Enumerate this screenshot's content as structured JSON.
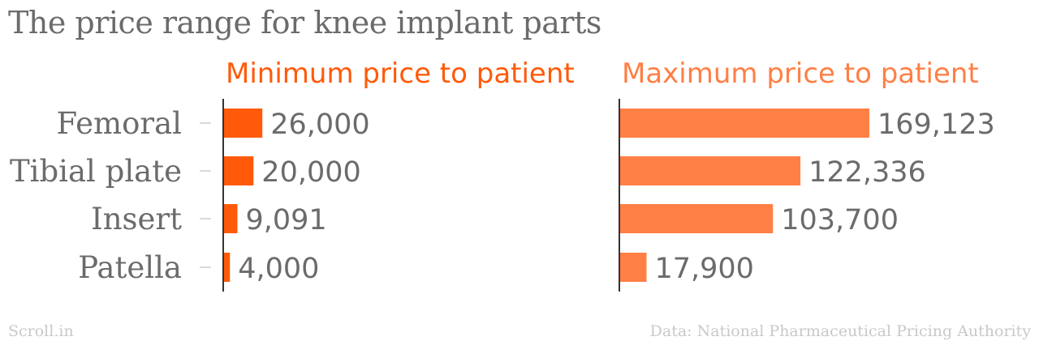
{
  "title": "The price range for knee implant parts",
  "footer": {
    "source_brand": "Scroll.in",
    "data_credit": "Data: National Pharmaceutical Pricing Authority"
  },
  "colors": {
    "min_series": "#ff5a0a",
    "max_series": "#ff7f45",
    "text": "#6b6b6b",
    "axis": "#333333",
    "tick": "#cccccc"
  },
  "chart_data": {
    "type": "bar",
    "orientation": "horizontal",
    "categories": [
      "Femoral",
      "Tibial plate",
      "Insert",
      "Patella"
    ],
    "series": [
      {
        "name": "Minimum price to patient",
        "values": [
          26000,
          20000,
          9091,
          4000
        ],
        "labels": [
          "26,000",
          "20,000",
          "9,091",
          "4,000"
        ]
      },
      {
        "name": "Maximum price to patient",
        "values": [
          169123,
          122336,
          103700,
          17900
        ],
        "labels": [
          "169,123",
          "122,336",
          "103,700",
          "17,900"
        ]
      }
    ],
    "title": "The price range for knee implant parts",
    "xlabel": "",
    "ylabel": "",
    "shared_scale": true,
    "grid": false,
    "legend": "panel titles above each panel"
  }
}
